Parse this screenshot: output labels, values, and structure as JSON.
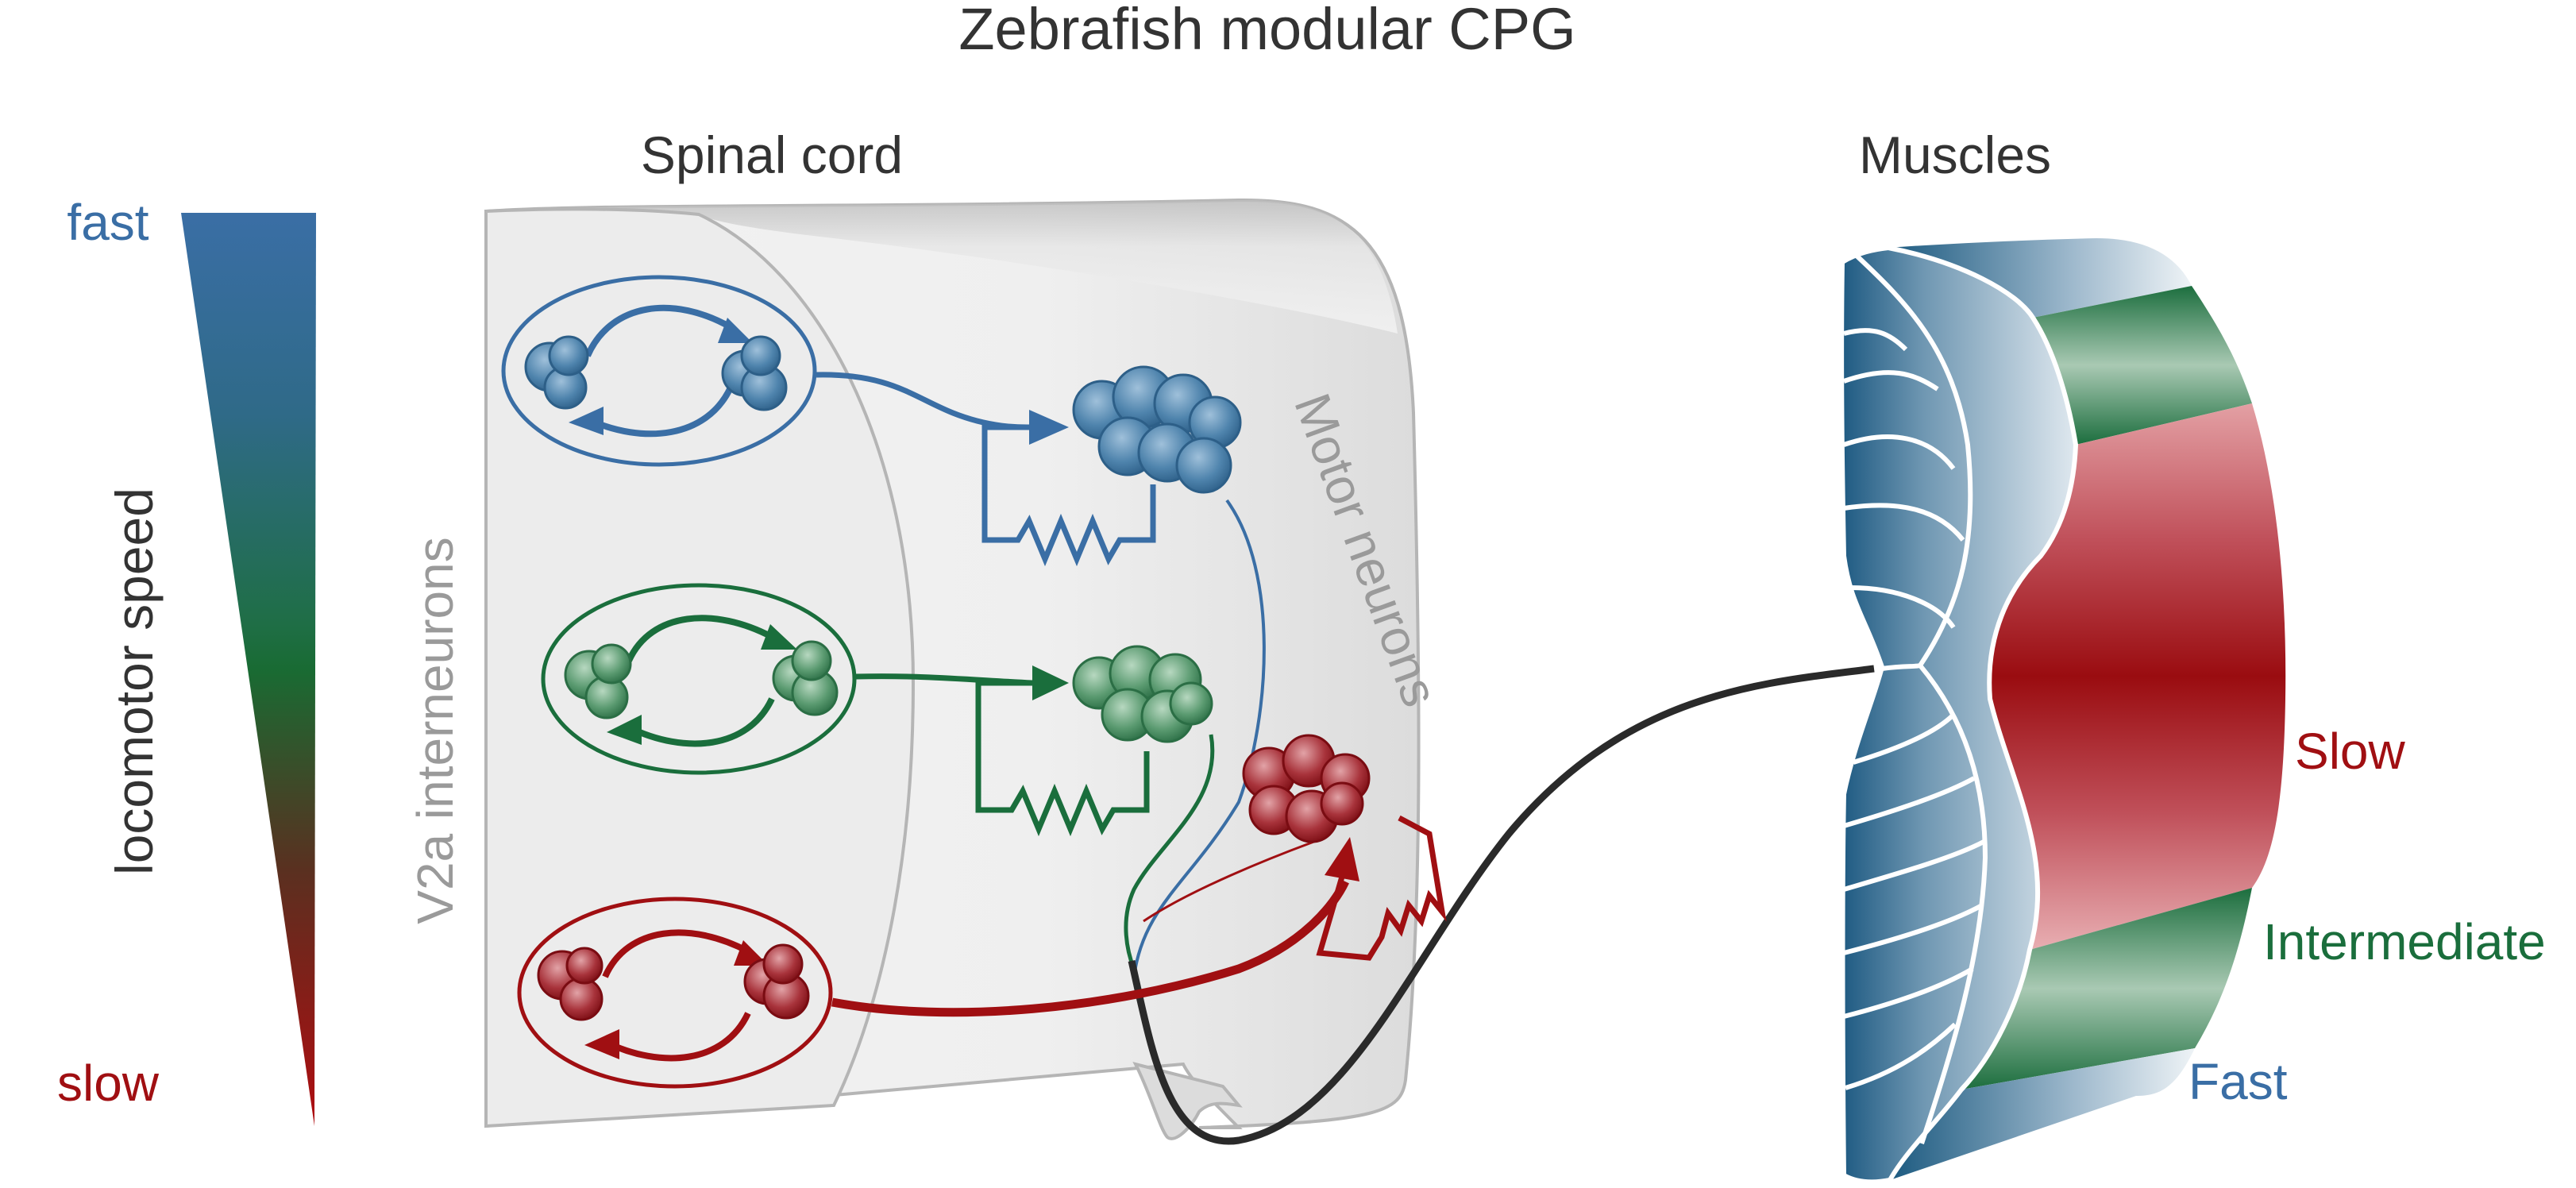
{
  "title": "Zebrafish modular CPG",
  "headers": {
    "spinal_cord": "Spinal cord",
    "muscles": "Muscles"
  },
  "speed_scale": {
    "fast": "fast",
    "slow": "slow",
    "axis_label": "locomotor speed"
  },
  "region_labels": {
    "interneurons": "V2a interneurons",
    "motor_neurons": "Motor neurons"
  },
  "muscle_labels": {
    "slow": "Slow",
    "intermediate": "Intermediate",
    "fast": "Fast"
  },
  "colors": {
    "fast": "#3a6ea5",
    "intermediate": "#1a6e3c",
    "slow": "#a00f12",
    "text": "#333333",
    "gray_text": "#9a9a9a"
  },
  "modules": [
    "fast",
    "intermediate",
    "slow"
  ]
}
